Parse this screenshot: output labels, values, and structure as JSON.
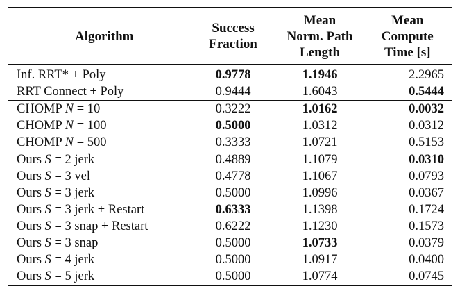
{
  "table": {
    "headers": [
      {
        "lines": [
          "Algorithm"
        ]
      },
      {
        "lines": [
          "Success",
          "Fraction"
        ]
      },
      {
        "lines": [
          "Mean",
          "Norm. Path",
          "Length"
        ]
      },
      {
        "lines": [
          "Mean",
          "Compute",
          "Time [s]"
        ]
      }
    ],
    "groups": [
      {
        "rows": [
          {
            "name": "Inf. RRT* + Poly",
            "cells": [
              "0.9778",
              "1.1946",
              "2.2965"
            ],
            "bold": [
              true,
              true,
              false
            ]
          },
          {
            "name": "RRT Connect + Poly",
            "cells": [
              "0.9444",
              "1.6043",
              "0.5444"
            ],
            "bold": [
              false,
              false,
              true
            ]
          }
        ]
      },
      {
        "rows": [
          {
            "name": "CHOMP N = 10",
            "cells": [
              "0.3222",
              "1.0162",
              "0.0032"
            ],
            "bold": [
              false,
              true,
              true
            ]
          },
          {
            "name": "CHOMP N = 100",
            "cells": [
              "0.5000",
              "1.0312",
              "0.0312"
            ],
            "bold": [
              true,
              false,
              false
            ]
          },
          {
            "name": "CHOMP N = 500",
            "cells": [
              "0.3333",
              "1.0721",
              "0.5153"
            ],
            "bold": [
              false,
              false,
              false
            ]
          }
        ]
      },
      {
        "rows": [
          {
            "name": "Ours S = 2 jerk",
            "cells": [
              "0.4889",
              "1.1079",
              "0.0310"
            ],
            "bold": [
              false,
              false,
              true
            ]
          },
          {
            "name": "Ours S = 3 vel",
            "cells": [
              "0.4778",
              "1.1067",
              "0.0793"
            ],
            "bold": [
              false,
              false,
              false
            ]
          },
          {
            "name": "Ours S = 3 jerk",
            "cells": [
              "0.5000",
              "1.0996",
              "0.0367"
            ],
            "bold": [
              false,
              false,
              false
            ]
          },
          {
            "name": "Ours S = 3 jerk + Restart",
            "cells": [
              "0.6333",
              "1.1398",
              "0.1724"
            ],
            "bold": [
              true,
              false,
              false
            ]
          },
          {
            "name": "Ours S = 3 snap + Restart",
            "cells": [
              "0.6222",
              "1.1230",
              "0.1573"
            ],
            "bold": [
              false,
              false,
              false
            ]
          },
          {
            "name": "Ours S = 3 snap",
            "cells": [
              "0.5000",
              "1.0733",
              "0.0379"
            ],
            "bold": [
              false,
              true,
              false
            ]
          },
          {
            "name": "Ours S = 4 jerk",
            "cells": [
              "0.5000",
              "1.0917",
              "0.0400"
            ],
            "bold": [
              false,
              false,
              false
            ]
          },
          {
            "name": "Ours S = 5 jerk",
            "cells": [
              "0.5000",
              "1.0774",
              "0.0745"
            ],
            "bold": [
              false,
              false,
              false
            ]
          }
        ]
      }
    ]
  }
}
